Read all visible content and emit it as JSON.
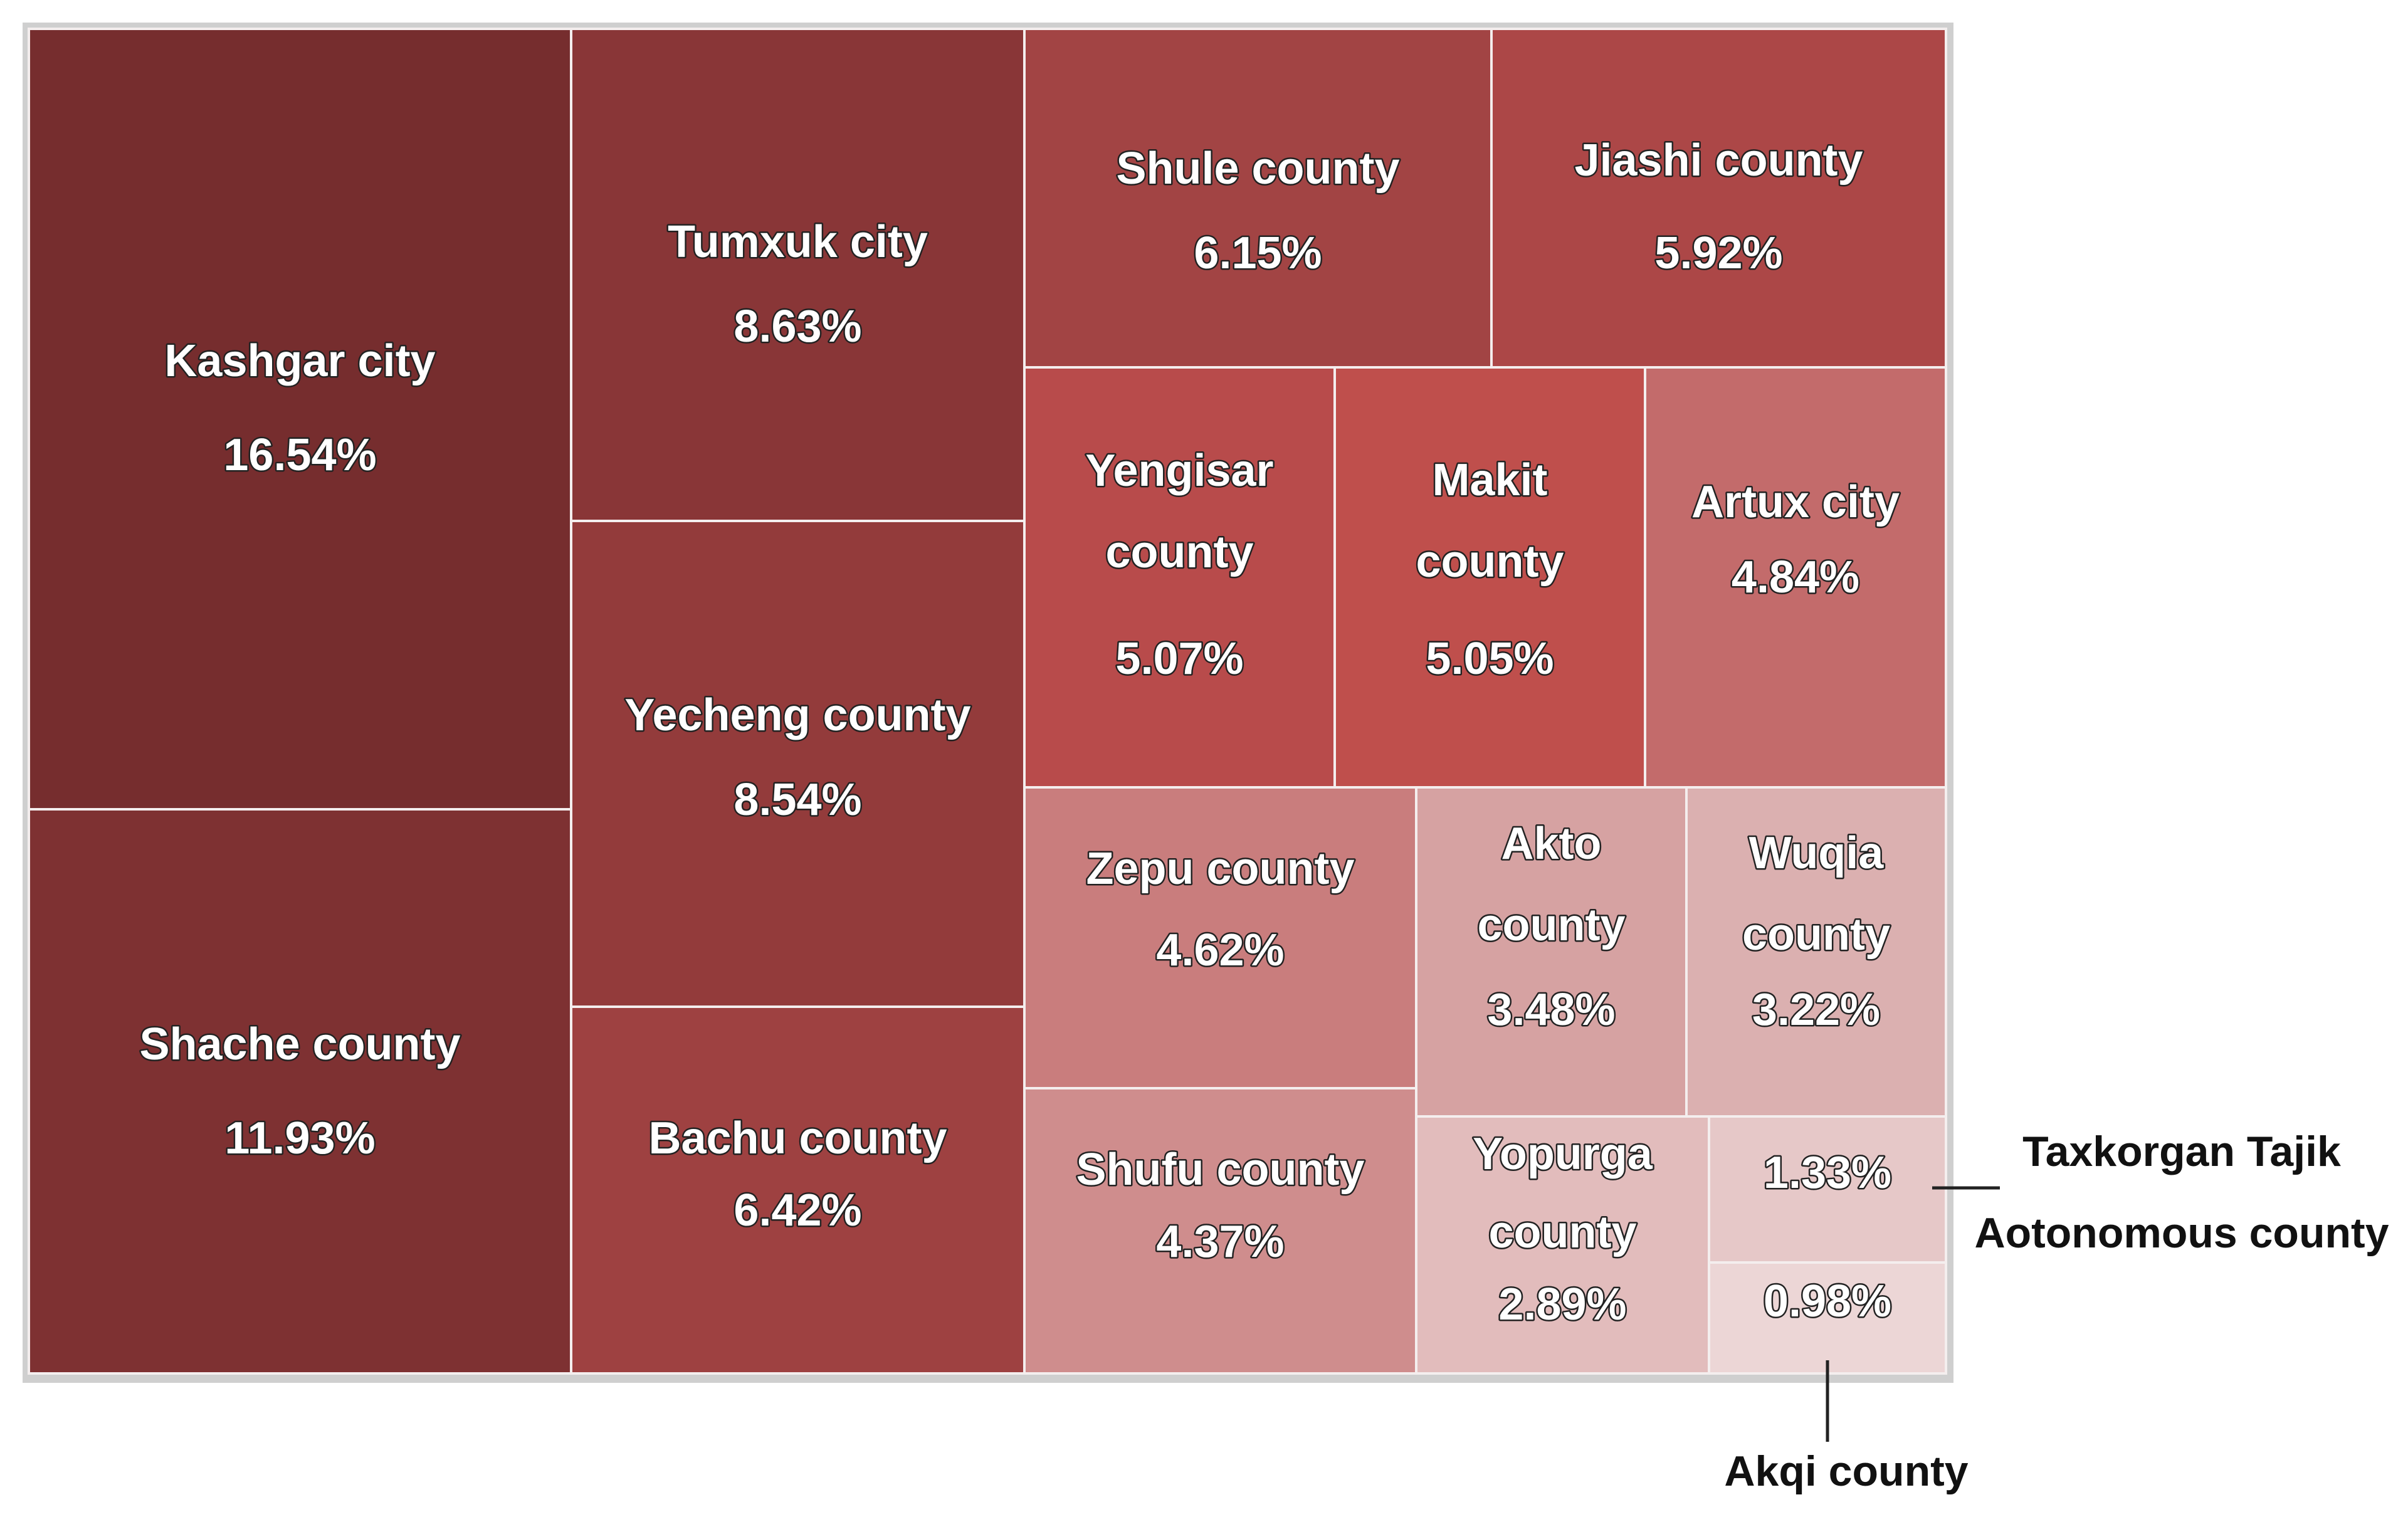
{
  "chart_data": {
    "type": "treemap",
    "title": "",
    "unit": "%",
    "items": [
      {
        "name_lines": [
          "Kashgar city"
        ],
        "value": 16.54,
        "value_label": "16.54%",
        "color": "#762d2e"
      },
      {
        "name_lines": [
          "Shache county"
        ],
        "value": 11.93,
        "value_label": "11.93%",
        "color": "#7e3132"
      },
      {
        "name_lines": [
          "Tumxuk city"
        ],
        "value": 8.63,
        "value_label": "8.63%",
        "color": "#893637"
      },
      {
        "name_lines": [
          "Yecheng county"
        ],
        "value": 8.54,
        "value_label": "8.54%",
        "color": "#933b3b"
      },
      {
        "name_lines": [
          "Bachu county"
        ],
        "value": 6.42,
        "value_label": "6.42%",
        "color": "#9e4141"
      },
      {
        "name_lines": [
          "Shule county"
        ],
        "value": 6.15,
        "value_label": "6.15%",
        "color": "#a24444"
      },
      {
        "name_lines": [
          "Jiashi county"
        ],
        "value": 5.92,
        "value_label": "5.92%",
        "color": "#ac4747"
      },
      {
        "name_lines": [
          "Yengisar",
          "county"
        ],
        "value": 5.07,
        "value_label": "5.07%",
        "color": "#b84b4b"
      },
      {
        "name_lines": [
          "Makit",
          "county"
        ],
        "value": 5.05,
        "value_label": "5.05%",
        "color": "#bf4f4c"
      },
      {
        "name_lines": [
          "Artux city"
        ],
        "value": 4.84,
        "value_label": "4.84%",
        "color": "#c36b6b"
      },
      {
        "name_lines": [
          "Zepu county"
        ],
        "value": 4.62,
        "value_label": "4.62%",
        "color": "#c97d7d"
      },
      {
        "name_lines": [
          "Shufu county"
        ],
        "value": 4.37,
        "value_label": "4.37%",
        "color": "#cf8d8d"
      },
      {
        "name_lines": [
          "Akto",
          "county"
        ],
        "value": 3.48,
        "value_label": "3.48%",
        "color": "#d6a2a2"
      },
      {
        "name_lines": [
          "Wuqia",
          "county"
        ],
        "value": 3.22,
        "value_label": "3.22%",
        "color": "#dbb0b0"
      },
      {
        "name_lines": [
          "Yopurga",
          "county"
        ],
        "value": 2.89,
        "value_label": "2.89%",
        "color": "#e2bcbc"
      },
      {
        "name_lines": [],
        "value": 1.33,
        "value_label": "1.33%",
        "color": "#e6c8c8"
      },
      {
        "name_lines": [],
        "value": 0.98,
        "value_label": "0.98%",
        "color": "#ecd6d6"
      }
    ],
    "callouts": [
      {
        "for_value_label": "1.33%",
        "text_lines": [
          "Taxkorgan Tajik",
          "Aotonomous county"
        ]
      },
      {
        "for_value_label": "0.98%",
        "text_lines": [
          "Akqi county"
        ]
      }
    ]
  }
}
